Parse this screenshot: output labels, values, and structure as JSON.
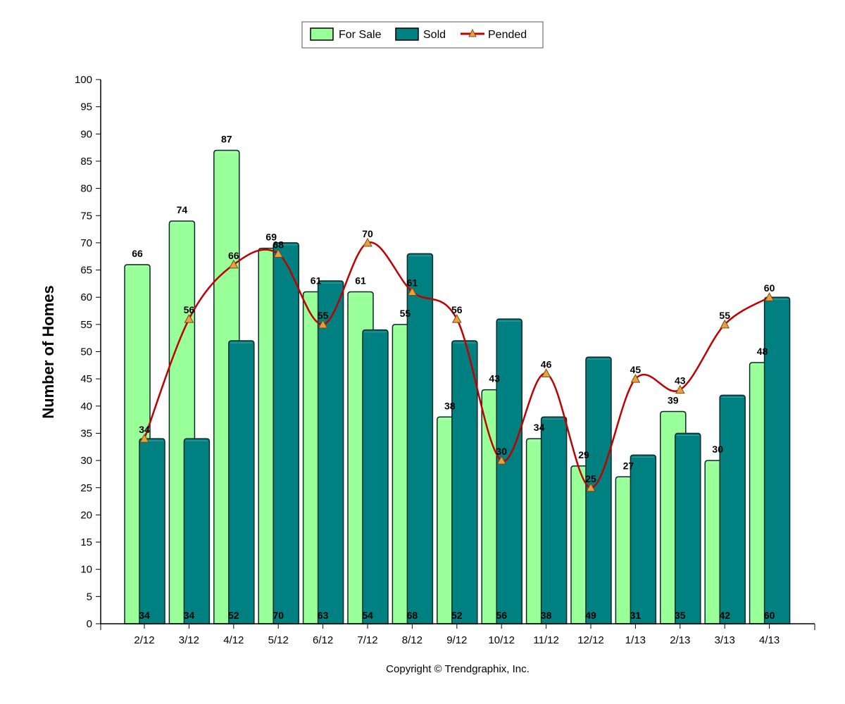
{
  "chart_data": {
    "type": "bar",
    "categories": [
      "2/12",
      "3/12",
      "4/12",
      "5/12",
      "6/12",
      "7/12",
      "8/12",
      "9/12",
      "10/12",
      "11/12",
      "12/12",
      "1/13",
      "2/13",
      "3/13",
      "4/13"
    ],
    "series": [
      {
        "name": "For Sale",
        "type": "bar",
        "color": "#99ff99",
        "values": [
          66,
          74,
          87,
          69,
          61,
          61,
          55,
          38,
          43,
          34,
          29,
          27,
          39,
          30,
          48
        ]
      },
      {
        "name": "Sold",
        "type": "bar",
        "color": "#008080",
        "values": [
          34,
          34,
          52,
          70,
          63,
          54,
          68,
          52,
          56,
          38,
          49,
          31,
          35,
          42,
          60
        ]
      },
      {
        "name": "Pended",
        "type": "line",
        "color": "#c00000",
        "marker_color": "#e8a040",
        "values": [
          34,
          56,
          66,
          68,
          55,
          70,
          61,
          56,
          30,
          46,
          25,
          45,
          43,
          55,
          60
        ]
      }
    ],
    "ylabel": "Number of Homes",
    "xlabel": "",
    "ylim": [
      0,
      100
    ],
    "yticks": [
      0,
      5,
      10,
      15,
      20,
      25,
      30,
      35,
      40,
      45,
      50,
      55,
      60,
      65,
      70,
      75,
      80,
      85,
      90,
      95,
      100
    ],
    "legend_position": "top-center",
    "grid": false
  },
  "footer": {
    "copyright": "Copyright © Trendgraphix, Inc."
  }
}
